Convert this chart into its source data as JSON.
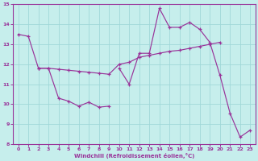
{
  "xlabel": "Windchill (Refroidissement éolien,°C)",
  "background_color": "#c6eeec",
  "grid_color": "#a0d8d8",
  "line_color": "#993399",
  "xlim": [
    -0.5,
    23.5
  ],
  "ylim": [
    8,
    15
  ],
  "yticks": [
    8,
    9,
    10,
    11,
    12,
    13,
    14,
    15
  ],
  "xticks": [
    0,
    1,
    2,
    3,
    4,
    5,
    6,
    7,
    8,
    9,
    10,
    11,
    12,
    13,
    14,
    15,
    16,
    17,
    18,
    19,
    20,
    21,
    22,
    23
  ],
  "lines": [
    {
      "x": [
        0,
        1,
        2,
        3,
        4,
        5,
        6,
        7,
        8,
        9
      ],
      "y": [
        13.5,
        13.4,
        11.8,
        11.8,
        10.3,
        10.15,
        9.9,
        10.1,
        9.85,
        9.9
      ]
    },
    {
      "x": [
        2,
        3,
        4,
        5,
        6,
        7,
        8,
        9,
        10,
        11,
        12,
        13,
        14,
        15,
        16,
        17,
        18,
        19,
        20
      ],
      "y": [
        11.8,
        11.8,
        11.75,
        11.7,
        11.65,
        11.6,
        11.55,
        11.5,
        12.0,
        12.1,
        12.35,
        12.45,
        12.55,
        12.65,
        12.7,
        12.8,
        12.9,
        13.0,
        13.1
      ]
    },
    {
      "x": [
        10,
        11,
        12,
        13,
        14,
        15,
        16,
        17,
        18,
        19,
        20,
        21,
        22,
        23
      ],
      "y": [
        11.8,
        11.0,
        12.55,
        12.55,
        14.8,
        13.85,
        13.85,
        14.1,
        13.75,
        13.1,
        11.45,
        9.55,
        8.35,
        8.7
      ]
    }
  ]
}
